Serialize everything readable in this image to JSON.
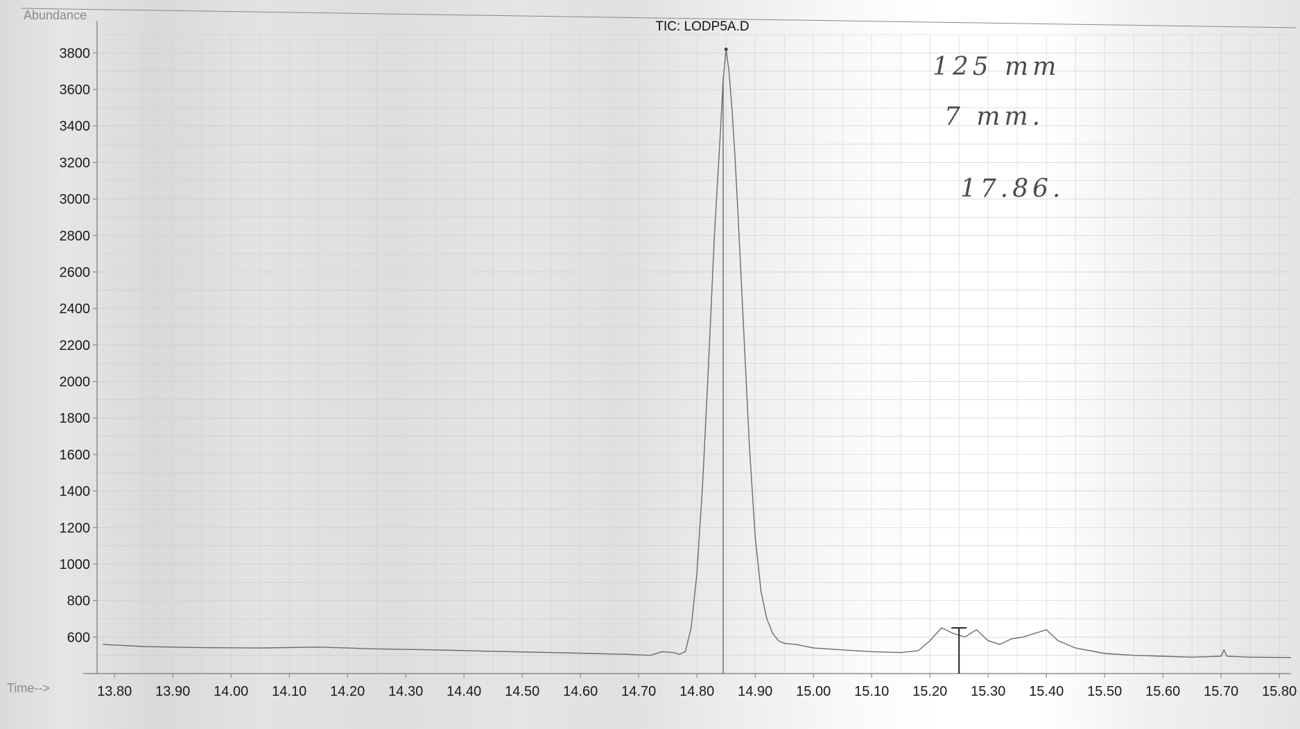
{
  "chart_data": {
    "type": "line",
    "title": "TIC: LODP5A.D",
    "ylabel": "Abundance",
    "xlabel": "Time-->",
    "ylim": [
      400,
      3900
    ],
    "xlim": [
      13.77,
      15.82
    ],
    "y_ticks": [
      600,
      800,
      1000,
      1200,
      1400,
      1600,
      1800,
      2000,
      2200,
      2400,
      2600,
      2800,
      3000,
      3200,
      3400,
      3600,
      3800
    ],
    "x_ticks": [
      "13.80",
      "13.90",
      "14.00",
      "14.10",
      "14.20",
      "14.30",
      "14.40",
      "14.50",
      "14.60",
      "14.70",
      "14.80",
      "14.90",
      "15.00",
      "15.10",
      "15.20",
      "15.30",
      "15.40",
      "15.50",
      "15.60",
      "15.70",
      "15.80"
    ],
    "grid": true,
    "series": [
      {
        "x": [
          13.78,
          13.85,
          13.95,
          14.05,
          14.15,
          14.25,
          14.35,
          14.45,
          14.55,
          14.62,
          14.68,
          14.72,
          14.74,
          14.76,
          14.77,
          14.78,
          14.79,
          14.8,
          14.81,
          14.82,
          14.83,
          14.84,
          14.845,
          14.85,
          14.855,
          14.86,
          14.865,
          14.87,
          14.88,
          14.89,
          14.9,
          14.91,
          14.92,
          14.93,
          14.94,
          14.95,
          14.97,
          15.0,
          15.05,
          15.1,
          15.15,
          15.18,
          15.2,
          15.22,
          15.24,
          15.26,
          15.28,
          15.3,
          15.32,
          15.34,
          15.36,
          15.38,
          15.4,
          15.42,
          15.45,
          15.5,
          15.55,
          15.6,
          15.65,
          15.7,
          15.705,
          15.71,
          15.75,
          15.82
        ],
        "y": [
          560,
          548,
          542,
          540,
          545,
          535,
          530,
          522,
          515,
          510,
          505,
          500,
          520,
          515,
          505,
          520,
          650,
          950,
          1450,
          2100,
          2800,
          3350,
          3650,
          3820,
          3700,
          3500,
          3250,
          2950,
          2300,
          1650,
          1150,
          850,
          700,
          620,
          580,
          565,
          560,
          540,
          530,
          520,
          515,
          525,
          580,
          650,
          620,
          600,
          640,
          580,
          560,
          590,
          600,
          620,
          640,
          580,
          540,
          510,
          500,
          495,
          490,
          495,
          530,
          495,
          490,
          488
        ]
      }
    ],
    "annotations": [
      {
        "label": "integration-marker",
        "x": 14.845
      },
      {
        "label": "integration-marker",
        "x": 15.25
      }
    ],
    "handwritten_notes": [
      "125 mm",
      "7 mm.",
      "17.86."
    ]
  }
}
